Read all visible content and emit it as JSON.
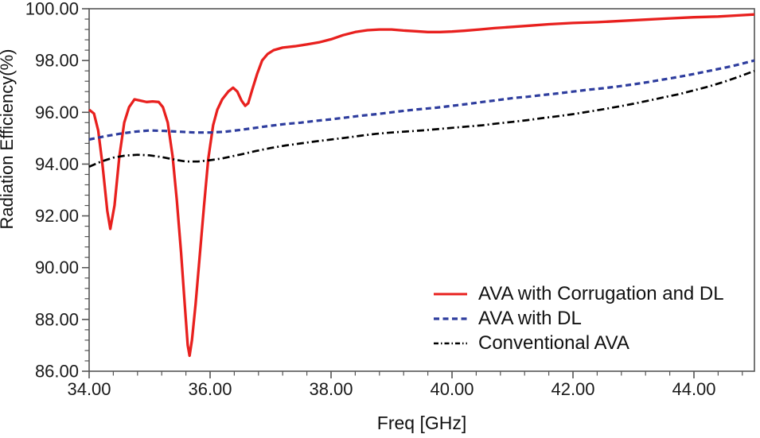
{
  "chart_data": {
    "type": "line",
    "title": "",
    "xlabel": "Freq [GHz]",
    "ylabel": "Radiation Efficiency(%)",
    "xlim": [
      34,
      45
    ],
    "ylim": [
      86,
      100
    ],
    "grid": false,
    "legend_position": "inside-bottom-right",
    "x_major_ticks": [
      34,
      36,
      38,
      40,
      42,
      44
    ],
    "x_tick_labels": [
      "34.00",
      "36.00",
      "38.00",
      "40.00",
      "42.00",
      "44.00"
    ],
    "x_minor_step": 0.4,
    "y_major_ticks": [
      86,
      88,
      90,
      92,
      94,
      96,
      98,
      100
    ],
    "y_tick_labels": [
      "86.00",
      "88.00",
      "90.00",
      "92.00",
      "94.00",
      "96.00",
      "98.00",
      "100.00"
    ],
    "y_minor_step": 0.4,
    "axis_color": "#545454",
    "text_color": "#1a1a1a",
    "series": [
      {
        "name": "AVA with Corrugation and DL",
        "color": "#e8201e",
        "style": "solid",
        "points": [
          [
            34.0,
            96.1
          ],
          [
            34.08,
            95.95
          ],
          [
            34.15,
            95.3
          ],
          [
            34.22,
            94.0
          ],
          [
            34.3,
            92.2
          ],
          [
            34.35,
            91.5
          ],
          [
            34.42,
            92.4
          ],
          [
            34.5,
            94.3
          ],
          [
            34.58,
            95.6
          ],
          [
            34.66,
            96.2
          ],
          [
            34.75,
            96.5
          ],
          [
            34.85,
            96.45
          ],
          [
            34.95,
            96.4
          ],
          [
            35.05,
            96.42
          ],
          [
            35.15,
            96.4
          ],
          [
            35.22,
            96.2
          ],
          [
            35.3,
            95.6
          ],
          [
            35.38,
            94.3
          ],
          [
            35.45,
            92.6
          ],
          [
            35.52,
            90.6
          ],
          [
            35.58,
            88.6
          ],
          [
            35.63,
            87.0
          ],
          [
            35.66,
            86.6
          ],
          [
            35.7,
            87.2
          ],
          [
            35.76,
            88.6
          ],
          [
            35.83,
            90.5
          ],
          [
            35.9,
            92.4
          ],
          [
            35.97,
            94.2
          ],
          [
            36.05,
            95.5
          ],
          [
            36.12,
            96.1
          ],
          [
            36.2,
            96.5
          ],
          [
            36.3,
            96.8
          ],
          [
            36.38,
            96.95
          ],
          [
            36.45,
            96.8
          ],
          [
            36.52,
            96.45
          ],
          [
            36.58,
            96.25
          ],
          [
            36.63,
            96.35
          ],
          [
            36.7,
            96.9
          ],
          [
            36.78,
            97.5
          ],
          [
            36.86,
            98.0
          ],
          [
            36.95,
            98.25
          ],
          [
            37.05,
            98.4
          ],
          [
            37.2,
            98.5
          ],
          [
            37.4,
            98.55
          ],
          [
            37.6,
            98.62
          ],
          [
            37.8,
            98.7
          ],
          [
            38.0,
            98.82
          ],
          [
            38.2,
            98.98
          ],
          [
            38.4,
            99.1
          ],
          [
            38.6,
            99.17
          ],
          [
            38.8,
            99.2
          ],
          [
            39.0,
            99.2
          ],
          [
            39.2,
            99.16
          ],
          [
            39.4,
            99.13
          ],
          [
            39.6,
            99.1
          ],
          [
            39.8,
            99.1
          ],
          [
            40.0,
            99.12
          ],
          [
            40.2,
            99.15
          ],
          [
            40.45,
            99.2
          ],
          [
            40.7,
            99.25
          ],
          [
            41.0,
            99.3
          ],
          [
            41.3,
            99.35
          ],
          [
            41.6,
            99.4
          ],
          [
            42.0,
            99.45
          ],
          [
            42.4,
            99.48
          ],
          [
            42.8,
            99.53
          ],
          [
            43.2,
            99.58
          ],
          [
            43.6,
            99.63
          ],
          [
            44.0,
            99.67
          ],
          [
            44.4,
            99.7
          ],
          [
            44.7,
            99.74
          ],
          [
            45.0,
            99.78
          ]
        ]
      },
      {
        "name": "AVA with DL",
        "color": "#2e3d9e",
        "style": "dashed",
        "points": [
          [
            34.0,
            94.95
          ],
          [
            34.25,
            95.07
          ],
          [
            34.5,
            95.17
          ],
          [
            34.75,
            95.25
          ],
          [
            35.0,
            95.3
          ],
          [
            35.25,
            95.28
          ],
          [
            35.5,
            95.25
          ],
          [
            35.75,
            95.22
          ],
          [
            36.0,
            95.22
          ],
          [
            36.25,
            95.25
          ],
          [
            36.5,
            95.32
          ],
          [
            36.75,
            95.4
          ],
          [
            37.0,
            95.48
          ],
          [
            37.25,
            95.55
          ],
          [
            37.5,
            95.6
          ],
          [
            37.75,
            95.67
          ],
          [
            38.0,
            95.73
          ],
          [
            38.25,
            95.8
          ],
          [
            38.5,
            95.87
          ],
          [
            38.75,
            95.93
          ],
          [
            39.0,
            96.0
          ],
          [
            39.25,
            96.07
          ],
          [
            39.5,
            96.13
          ],
          [
            39.75,
            96.18
          ],
          [
            40.0,
            96.25
          ],
          [
            40.25,
            96.32
          ],
          [
            40.5,
            96.4
          ],
          [
            40.75,
            96.47
          ],
          [
            41.0,
            96.55
          ],
          [
            41.25,
            96.6
          ],
          [
            41.5,
            96.67
          ],
          [
            41.75,
            96.73
          ],
          [
            42.0,
            96.8
          ],
          [
            42.25,
            96.87
          ],
          [
            42.5,
            96.93
          ],
          [
            42.75,
            97.0
          ],
          [
            43.0,
            97.08
          ],
          [
            43.25,
            97.17
          ],
          [
            43.5,
            97.27
          ],
          [
            43.75,
            97.37
          ],
          [
            44.0,
            97.48
          ],
          [
            44.25,
            97.6
          ],
          [
            44.5,
            97.72
          ],
          [
            44.75,
            97.85
          ],
          [
            45.0,
            98.0
          ]
        ]
      },
      {
        "name": "Conventional AVA",
        "color": "#000000",
        "style": "dashdot",
        "points": [
          [
            34.0,
            93.9
          ],
          [
            34.2,
            94.1
          ],
          [
            34.4,
            94.25
          ],
          [
            34.6,
            94.33
          ],
          [
            34.8,
            94.36
          ],
          [
            35.0,
            94.34
          ],
          [
            35.2,
            94.27
          ],
          [
            35.4,
            94.18
          ],
          [
            35.6,
            94.1
          ],
          [
            35.8,
            94.1
          ],
          [
            36.0,
            94.15
          ],
          [
            36.2,
            94.22
          ],
          [
            36.5,
            94.37
          ],
          [
            36.75,
            94.5
          ],
          [
            37.0,
            94.62
          ],
          [
            37.25,
            94.72
          ],
          [
            37.5,
            94.8
          ],
          [
            37.75,
            94.88
          ],
          [
            38.0,
            94.95
          ],
          [
            38.25,
            95.02
          ],
          [
            38.5,
            95.1
          ],
          [
            38.75,
            95.17
          ],
          [
            39.0,
            95.22
          ],
          [
            39.25,
            95.26
          ],
          [
            39.5,
            95.3
          ],
          [
            39.75,
            95.35
          ],
          [
            40.0,
            95.4
          ],
          [
            40.25,
            95.45
          ],
          [
            40.5,
            95.5
          ],
          [
            40.75,
            95.57
          ],
          [
            41.0,
            95.63
          ],
          [
            41.25,
            95.7
          ],
          [
            41.5,
            95.78
          ],
          [
            41.75,
            95.85
          ],
          [
            42.0,
            95.93
          ],
          [
            42.25,
            96.02
          ],
          [
            42.5,
            96.12
          ],
          [
            42.75,
            96.22
          ],
          [
            43.0,
            96.33
          ],
          [
            43.25,
            96.45
          ],
          [
            43.5,
            96.58
          ],
          [
            43.75,
            96.7
          ],
          [
            44.0,
            96.85
          ],
          [
            44.25,
            97.0
          ],
          [
            44.5,
            97.18
          ],
          [
            44.75,
            97.38
          ],
          [
            45.0,
            97.6
          ]
        ]
      }
    ]
  }
}
